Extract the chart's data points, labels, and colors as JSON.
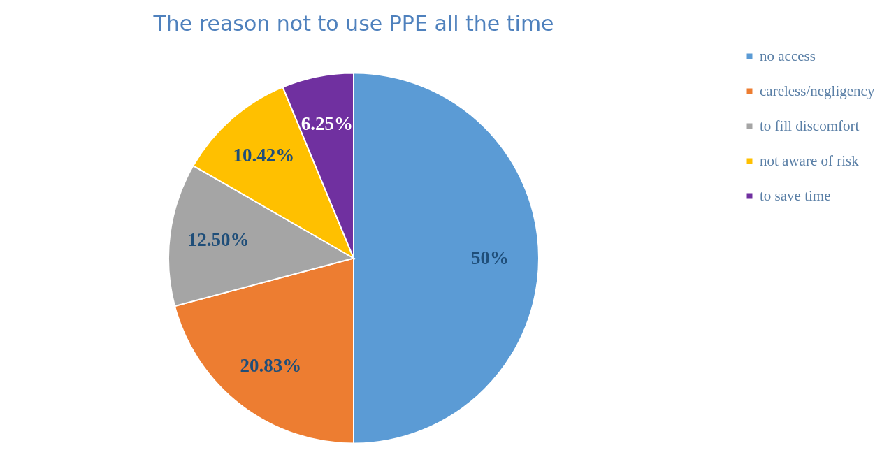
{
  "chart_data": {
    "type": "pie",
    "title": "The reason not to use PPE all the time",
    "categories": [
      "no access",
      "careless/negligency",
      "to fill discomfort",
      "not aware of risk",
      "to save time"
    ],
    "values": [
      50,
      20.83,
      12.5,
      10.42,
      6.25
    ],
    "colors": [
      "#5b9bd5",
      "#ed7d31",
      "#a5a5a5",
      "#ffc000",
      "#7030a0"
    ],
    "value_labels": [
      "50%",
      "20.83%",
      "12.50%",
      "10.42%",
      "6.25%"
    ],
    "legend": "right"
  }
}
